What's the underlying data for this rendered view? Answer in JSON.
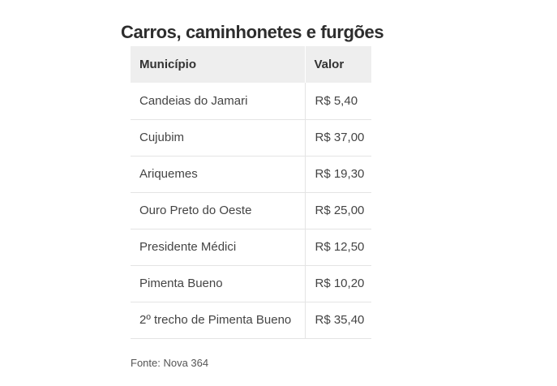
{
  "title": "Carros, caminhonetes e furgões",
  "table": {
    "headers": [
      "Município",
      "Valor"
    ],
    "rows": [
      {
        "municipio": "Candeias do Jamari",
        "valor": "R$ 5,40"
      },
      {
        "municipio": "Cujubim",
        "valor": "R$ 37,00"
      },
      {
        "municipio": "Ariquemes",
        "valor": "R$ 19,30"
      },
      {
        "municipio": "Ouro Preto do Oeste",
        "valor": "R$ 25,00"
      },
      {
        "municipio": "Presidente Médici",
        "valor": "R$ 12,50"
      },
      {
        "municipio": "Pimenta Bueno",
        "valor": "R$ 10,20"
      },
      {
        "municipio": "2º trecho de Pimenta Bueno",
        "valor": "R$ 35,40"
      }
    ]
  },
  "source": "Fonte: Nova 364"
}
